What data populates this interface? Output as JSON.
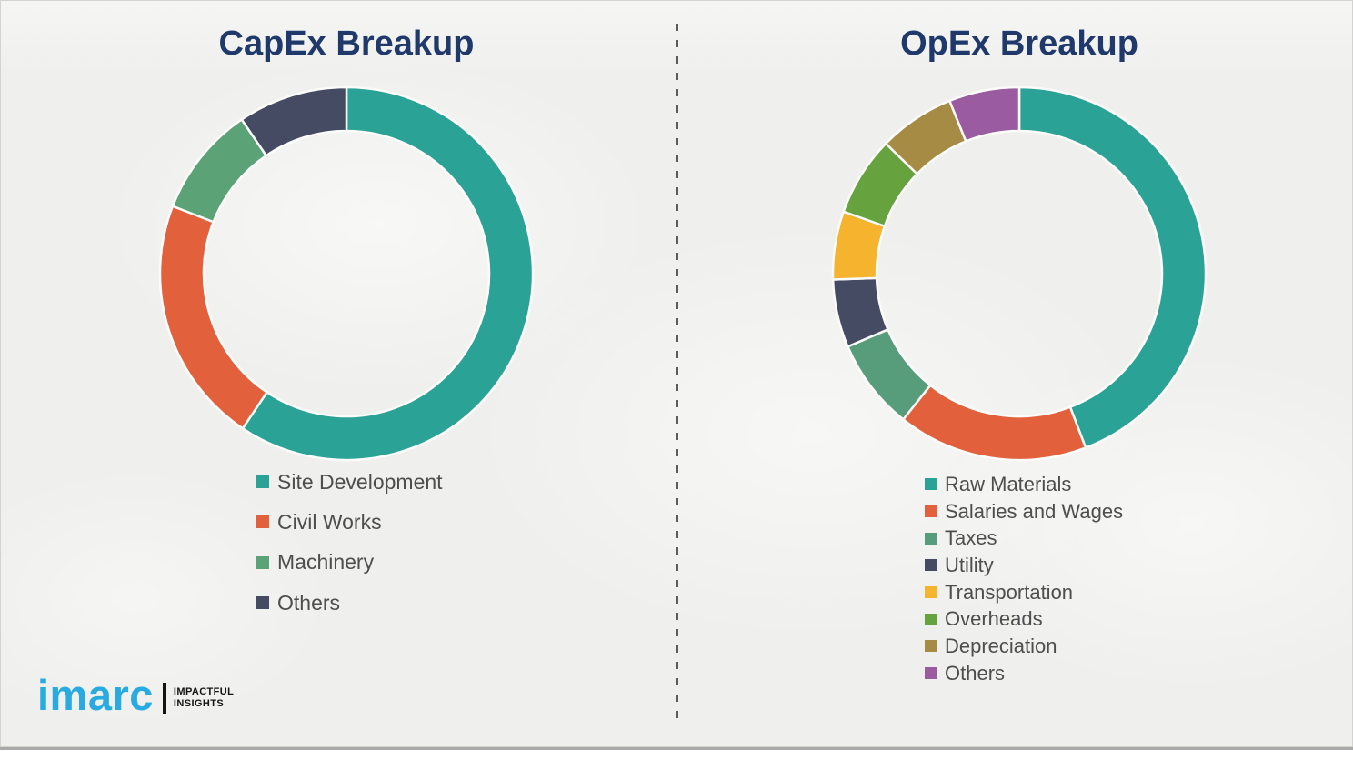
{
  "page": {
    "background_color": "#efefed",
    "divider_color": "#5c5c5c",
    "title_color": "#20396b",
    "legend_text_color": "#4e4e4e"
  },
  "logo": {
    "wordmark": "imarc",
    "wordmark_color": "#29abe2",
    "tagline": [
      "IMPACTFUL",
      "INSIGHTS"
    ]
  },
  "chart_data": [
    {
      "type": "pie",
      "subtype": "donut",
      "title": "CapEx Breakup",
      "categories": [
        "Site Development",
        "Civil Works",
        "Machinery",
        "Others"
      ],
      "values": [
        59.4,
        21.5,
        9.6,
        9.5
      ],
      "values_note": "percent, estimated from arc angles (no numeric labels shown)",
      "colors": [
        "#2aa396",
        "#e2613c",
        "#5ba377",
        "#454b63"
      ],
      "start_angle_deg": 0,
      "direction": "clockwise",
      "donut_hole_ratio": 0.766,
      "legend_position": "below-left"
    },
    {
      "type": "pie",
      "subtype": "donut",
      "title": "OpEx Breakup",
      "categories": [
        "Raw Materials",
        "Salaries and Wages",
        "Taxes",
        "Utility",
        "Transportation",
        "Overheads",
        "Depreciation",
        "Others"
      ],
      "values": [
        44.2,
        16.5,
        7.9,
        5.9,
        5.9,
        6.9,
        6.6,
        6.1
      ],
      "values_note": "percent, estimated from arc angles (no numeric labels shown)",
      "colors": [
        "#2aa396",
        "#e2613c",
        "#579d7b",
        "#454b63",
        "#f5b32e",
        "#66a33f",
        "#a68b44",
        "#9a5ba1"
      ],
      "start_angle_deg": 0,
      "direction": "clockwise",
      "donut_hole_ratio": 0.766,
      "legend_position": "below-left"
    }
  ]
}
